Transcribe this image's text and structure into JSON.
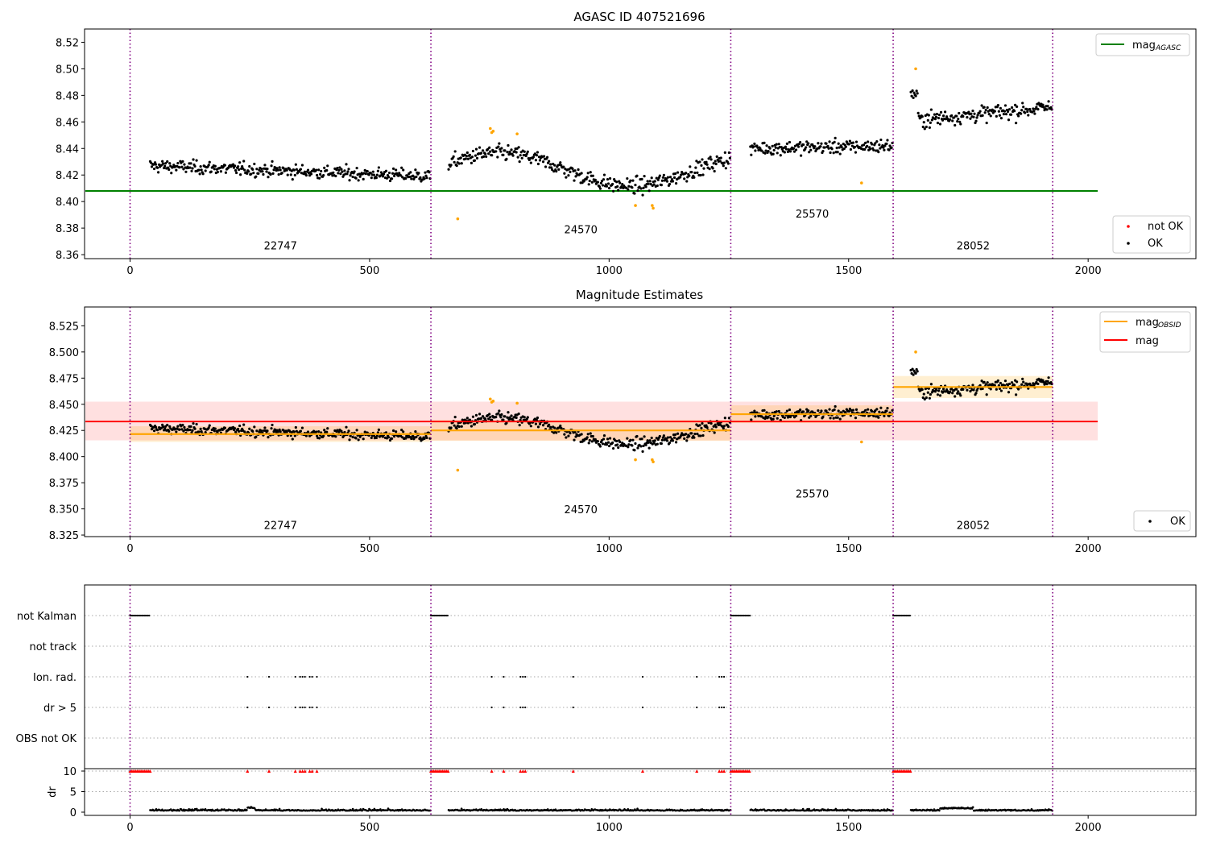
{
  "chart_data": [
    {
      "type": "scatter",
      "title": "AGASC ID 407521696",
      "xlim": [
        -95,
        2225
      ],
      "ylim": [
        8.357,
        8.53
      ],
      "xticks": [
        0,
        500,
        1000,
        1500,
        2000
      ],
      "yticks": [
        8.36,
        8.38,
        8.4,
        8.42,
        8.44,
        8.46,
        8.48,
        8.5,
        8.52
      ],
      "ytick_decimals": 2,
      "obsid_boundaries": [
        0,
        628,
        1254,
        1593,
        1926
      ],
      "obsid_labels": [
        {
          "text": "22747",
          "x": 314,
          "y": 8.364
        },
        {
          "text": "24570",
          "x": 941,
          "y": 8.376
        },
        {
          "text": "25570",
          "x": 1424,
          "y": 8.388
        },
        {
          "text": "28052",
          "x": 1760,
          "y": 8.364
        }
      ],
      "segments": [
        {
          "x": [
            42,
            628
          ],
          "mean": 8.423,
          "slope": -0.008,
          "scatter": 0.0075
        },
        {
          "x": [
            665,
            1254
          ],
          "mean": 8.424,
          "slope": -0.002,
          "scatter": 0.009
        },
        {
          "x": [
            1295,
            1593
          ],
          "mean": 8.441,
          "slope": 0.002,
          "scatter": 0.008
        },
        {
          "x": [
            1630,
            1926
          ],
          "mean": 8.466,
          "slope": 0.01,
          "scatter": 0.009
        }
      ],
      "not_ok_points": [
        [
          684,
          8.387
        ],
        [
          752,
          8.455
        ],
        [
          755,
          8.452
        ],
        [
          758,
          8.453
        ],
        [
          808,
          8.451
        ],
        [
          1055,
          8.397
        ],
        [
          1090,
          8.397
        ],
        [
          1092,
          8.395
        ],
        [
          1527,
          8.414
        ],
        [
          1640,
          8.5
        ]
      ],
      "mag_agasc": {
        "value": 8.408,
        "x": [
          -95,
          2020
        ]
      },
      "legend_upper": [
        {
          "label": "mag",
          "subscript": "AGASC",
          "color": "#008000"
        }
      ],
      "legend_lower": [
        {
          "label": "not OK",
          "color": "#ff0000"
        },
        {
          "label": "OK",
          "color": "#000000"
        }
      ],
      "colors": {
        "ok": "#000000",
        "not_ok_plot": "#ffa500",
        "boundary": "#800080"
      }
    },
    {
      "type": "scatter",
      "title": "Magnitude Estimates",
      "xlim": [
        -95,
        2225
      ],
      "ylim": [
        8.3235,
        8.543
      ],
      "xticks": [
        0,
        500,
        1000,
        1500,
        2000
      ],
      "yticks": [
        8.325,
        8.35,
        8.375,
        8.4,
        8.425,
        8.45,
        8.475,
        8.5,
        8.525
      ],
      "ytick_decimals": 3,
      "obsid_labels": [
        {
          "text": "22747",
          "x": 314,
          "y": 8.331
        },
        {
          "text": "24570",
          "x": 941,
          "y": 8.346
        },
        {
          "text": "25570",
          "x": 1424,
          "y": 8.361
        },
        {
          "text": "28052",
          "x": 1760,
          "y": 8.331
        }
      ],
      "mag": {
        "value": 8.4335,
        "band": [
          8.4155,
          8.4525
        ],
        "x": [
          -95,
          2020
        ]
      },
      "mag_obsid": [
        {
          "x": [
            0,
            628
          ],
          "value": 8.4215,
          "band": [
            8.414,
            8.429
          ]
        },
        {
          "x": [
            628,
            1254
          ],
          "value": 8.425,
          "band": [
            8.415,
            8.435
          ]
        },
        {
          "x": [
            1254,
            1593
          ],
          "value": 8.4405,
          "band": [
            8.432,
            8.449
          ]
        },
        {
          "x": [
            1593,
            1926
          ],
          "value": 8.4665,
          "band": [
            8.456,
            8.477
          ]
        }
      ],
      "legend_upper": [
        {
          "label": "mag",
          "subscript": "OBSID",
          "color": "#ffa500"
        },
        {
          "label": "mag",
          "subscript": "",
          "color": "#ff0000"
        }
      ],
      "legend_lower": [
        {
          "label": "OK",
          "color": "#000000"
        }
      ]
    },
    {
      "type": "scatter",
      "title": "",
      "flag_rows": [
        "not Kalman",
        "not track",
        "Ion. rad.",
        "dr > 5",
        "OBS not OK"
      ],
      "not_kalman_ranges": [
        [
          0,
          42
        ],
        [
          628,
          665
        ],
        [
          1254,
          1295
        ],
        [
          1593,
          1630
        ]
      ],
      "event_x": [
        245,
        290,
        345,
        355,
        360,
        365,
        375,
        380,
        390,
        755,
        780,
        815,
        820,
        825,
        925,
        1070,
        1183,
        1230,
        1235,
        1240
      ],
      "dr_ylim": [
        0,
        10
      ],
      "dr_yticks": [
        0,
        5,
        10
      ],
      "ylabel": "dr",
      "xticks": [
        0,
        500,
        1000,
        1500,
        2000
      ]
    }
  ]
}
